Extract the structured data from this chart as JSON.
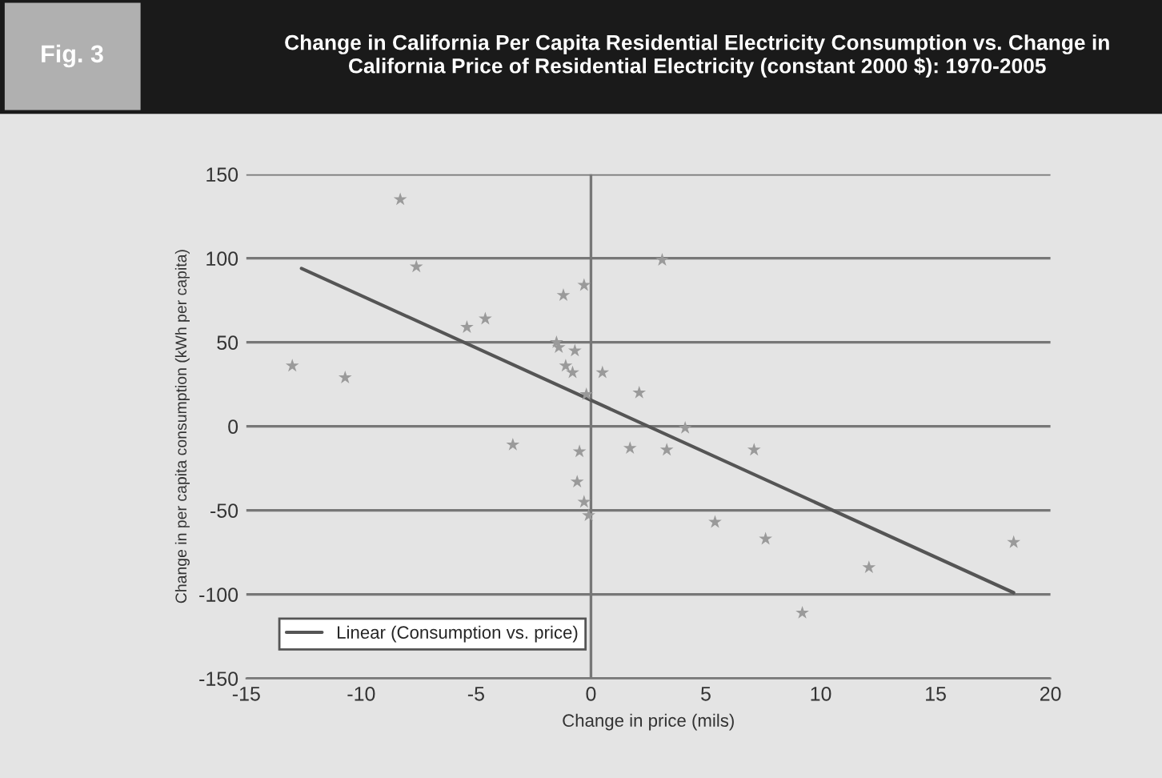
{
  "chart_data": {
    "type": "scatter",
    "title": "Change in California Per Capita Residential Electricity Consumption vs. Change in California Price of Residential Electricity (constant 2000 $): 1970-2005",
    "xlabel": "Change in price (mils)",
    "ylabel": "Change in per capita consumption (kWh per capita)",
    "annotations": [
      "Fig. 3"
    ],
    "series": [
      {
        "marker": "star",
        "color": "#9a9a9a",
        "x": [
          -13,
          -10.7,
          -8.3,
          -7.6,
          -5.4,
          -4.6,
          -3.4,
          -1.2,
          -1.5,
          -1.4,
          -0.7,
          -1.1,
          -0.8,
          -0.3,
          -0.2,
          -0.5,
          -0.6,
          -0.3,
          -0.1,
          0.5,
          3.1,
          2.1,
          1.7,
          3.3,
          4.1,
          7.1,
          5.4,
          7.6,
          9.2,
          12.1,
          18.4
        ],
        "values": [
          36,
          29,
          135,
          95,
          59,
          64,
          -11,
          78,
          50,
          47,
          45,
          36,
          32,
          84,
          19,
          -15,
          -33,
          -45,
          -53,
          32,
          99,
          20,
          -13,
          -14,
          -1,
          -14,
          -57,
          -67,
          -111,
          -84,
          -69
        ]
      },
      {
        "type": "line",
        "name": "Linear (Consumption vs. price)",
        "color": "#555555",
        "x": [
          -12.6,
          18.4
        ],
        "values": [
          94,
          -99
        ]
      }
    ],
    "xlim": [
      -15,
      20
    ],
    "xticks": [
      -15,
      -10,
      -5,
      0,
      5,
      10,
      15,
      20
    ],
    "ylim": [
      -150,
      150
    ],
    "yticks": [
      -150,
      -100,
      -50,
      0,
      50,
      100,
      150
    ],
    "ref_lines": [
      {
        "axis": "x",
        "value": 0,
        "color": "#777777"
      }
    ],
    "grid": "y",
    "legend": "bottom left"
  }
}
